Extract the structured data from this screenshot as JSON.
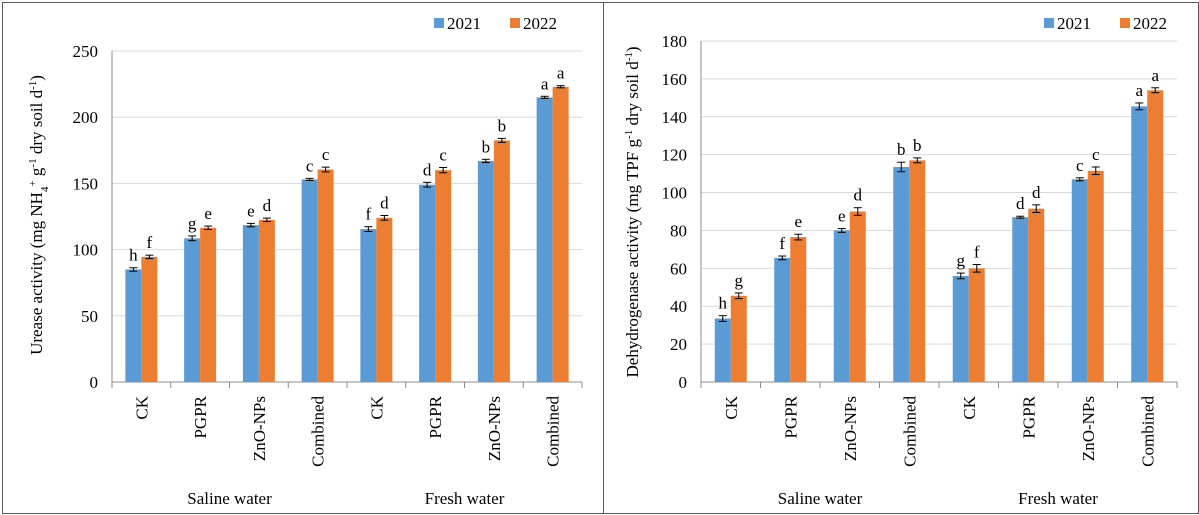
{
  "colors": {
    "series_2021": "#5b9bd5",
    "series_2022": "#ed7d31",
    "axis": "#8c8c8c",
    "grid": "#d9d9d9",
    "frame": "#595959"
  },
  "chart_data": [
    {
      "type": "bar",
      "title": "",
      "ylabel_parts": [
        "Urease activity (mg NH",
        "4",
        "+",
        " g",
        "-1",
        " dry soil d",
        "-1",
        ")"
      ],
      "ylim": [
        0,
        250
      ],
      "yticks": [
        0,
        50,
        100,
        150,
        200,
        250
      ],
      "categories": [
        "CK",
        "PGPR",
        "ZnO-NPs",
        "Combined",
        "CK",
        "PGPR",
        "ZnO-NPs",
        "Combined"
      ],
      "groups": [
        {
          "label": "Saline water",
          "span": [
            0,
            3
          ]
        },
        {
          "label": "Fresh water",
          "span": [
            4,
            7
          ]
        }
      ],
      "legend": {
        "position": "top-right"
      },
      "series": [
        {
          "name": "2021",
          "values": [
            85,
            108.5,
            118.5,
            153,
            115.5,
            149,
            167,
            215
          ],
          "errors": [
            1.3,
            1.8,
            1.3,
            0.8,
            1.8,
            1.8,
            1.2,
            0.8
          ],
          "labels": [
            "h",
            "g",
            "e",
            "c",
            "f",
            "d",
            "b",
            "a"
          ]
        },
        {
          "name": "2022",
          "values": [
            94.5,
            116.5,
            122.5,
            160.5,
            124,
            160,
            182.5,
            223
          ],
          "errors": [
            1.3,
            1.3,
            1.3,
            1.8,
            1.8,
            2.0,
            1.5,
            0.8
          ],
          "labels": [
            "f",
            "e",
            "d",
            "c",
            "d",
            "c",
            "b",
            "a"
          ]
        }
      ]
    },
    {
      "type": "bar",
      "title": "",
      "ylabel_parts": [
        "Dehydrogenase activity (mg TPF g",
        "-1",
        " dry soil d",
        "-1",
        ")"
      ],
      "ylim": [
        0,
        180
      ],
      "yticks": [
        0,
        20,
        40,
        60,
        80,
        100,
        120,
        140,
        160,
        180
      ],
      "categories": [
        "CK",
        "PGPR",
        "ZnO-NPs",
        "Combined",
        "CK",
        "PGPR",
        "ZnO-NPs",
        "Combined"
      ],
      "groups": [
        {
          "label": "Saline water",
          "span": [
            0,
            3
          ]
        },
        {
          "label": "Fresh water",
          "span": [
            4,
            7
          ]
        }
      ],
      "legend": {
        "position": "top-right"
      },
      "series": [
        {
          "name": "2021",
          "values": [
            33.5,
            65.5,
            80,
            113.5,
            56,
            87,
            107,
            145.5
          ],
          "errors": [
            1.5,
            1.0,
            1.0,
            2.5,
            1.5,
            0.5,
            0.8,
            1.8
          ],
          "labels": [
            "h",
            "f",
            "e",
            "b",
            "g",
            "d",
            "c",
            "a"
          ]
        },
        {
          "name": "2022",
          "values": [
            45.5,
            76.5,
            90,
            117,
            60,
            91.5,
            111.5,
            154
          ],
          "errors": [
            1.5,
            1.5,
            2.0,
            1.3,
            2.0,
            2.0,
            2.0,
            1.3
          ],
          "labels": [
            "g",
            "e",
            "d",
            "b",
            "f",
            "d",
            "c",
            "a"
          ]
        }
      ]
    }
  ]
}
